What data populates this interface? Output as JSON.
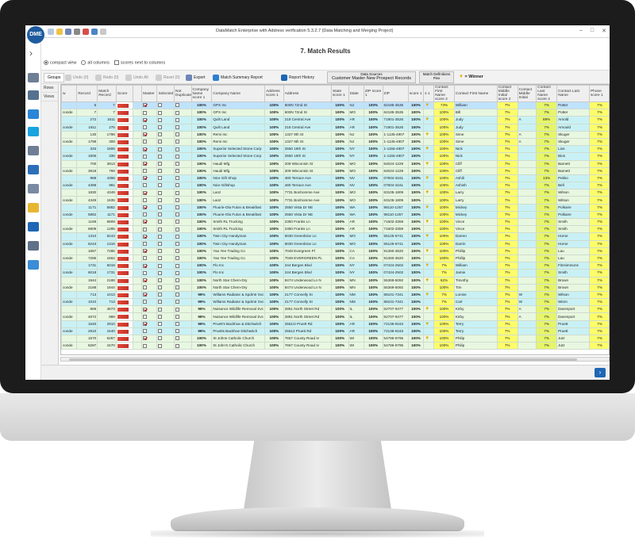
{
  "window": {
    "title": "DataMatch Enterprise with Address verification 5.3.2.7 (Data Matching and Merging Project)",
    "logo": "DME",
    "controls": [
      "–",
      "□",
      "✕"
    ]
  },
  "page_title": "7. Match Results",
  "options": {
    "compact_view": "compact view",
    "all_columns": "all columns",
    "scores_next": "scores next to columns"
  },
  "toolbar": {
    "groups_tab": "Groups",
    "undo": "Undo (0)",
    "redo": "Redo (0)",
    "undo_all": "Undo All",
    "reset": "Reset (0)",
    "export": "Export",
    "summary": "Match Summary Report",
    "history": "Report History",
    "data_sources_label": "Data Sources",
    "data_sources_value": "Customer Master   New Prospect Records",
    "match_def_label": "Match Definitions",
    "match_def_value": "Flex",
    "winner": "= Winner"
  },
  "views": [
    "Rows",
    "Views"
  ],
  "columns": [
    "w",
    "Record",
    "Match Record",
    "Score",
    "",
    "Master",
    "Selected",
    "Not Duplicate",
    "Company Name score 1",
    "Company Name",
    "Address score 1",
    "Address",
    "State score 1",
    "State",
    "ZIP score 1",
    "ZIP",
    "score 1",
    "s 1",
    "Contact First Name score 2",
    "Contact First Name",
    "Contact Middle Initial score 2",
    "Contact Middle Initial",
    "Contact Last Name score 2",
    "Contact Last Name",
    "Phone score 1"
  ],
  "rows": [
    {
      "g": "1",
      "cls": "sel",
      "w": "",
      "rec": "6",
      "mrec": "7",
      "master": true,
      "sel": false,
      "cs": "100%",
      "co": "GPX Inc",
      "as": "100%",
      "addr": "600N 72nd St",
      "ss": "100%",
      "st": "NJ",
      "zs": "100%",
      "zip": "62185-3535",
      "z1": "100%",
      "win": true,
      "fs": "73%",
      "fn": "William",
      "ms": "7%",
      "mi": "",
      "ls": "7%",
      "ln": "Potter",
      "ps": "7%"
    },
    {
      "g": "1",
      "cls": "",
      "w": "conde",
      "rec": "7",
      "mrec": "7",
      "master": false,
      "sel": false,
      "cs": "100%",
      "co": "GPX Inc",
      "as": "100%",
      "addr": "600N 72nd St",
      "ss": "100%",
      "st": "MO",
      "zs": "100%",
      "zip": "62185-3535",
      "z1": "100%",
      "win": false,
      "fs": "100%",
      "fn": "Bill",
      "ms": "7%",
      "mi": "",
      "ls": "7%",
      "ln": "Potter",
      "ps": "7%"
    },
    {
      "g": "2",
      "cls": "",
      "w": "",
      "rec": "272",
      "mrec": "1611",
      "master": true,
      "sel": false,
      "cs": "100%",
      "co": "Quilt Land",
      "as": "100%",
      "addr": "218 Central Ave",
      "ss": "100%",
      "st": "AR",
      "zs": "100%",
      "zip": "71901-3526",
      "z1": "100%",
      "win": true,
      "fs": "100%",
      "fn": "Judy",
      "ms": "7%",
      "mi": "A",
      "ls": "89%",
      "ln": "Arnold",
      "ps": "7%"
    },
    {
      "g": "2",
      "cls": "",
      "w": "conde",
      "rec": "1611",
      "mrec": "275",
      "master": false,
      "sel": false,
      "cs": "100%",
      "co": "Quilt Land",
      "as": "100%",
      "addr": "218 Central Ave",
      "ss": "100%",
      "st": "AR",
      "zs": "100%",
      "zip": "71901-3526",
      "z1": "100%",
      "win": false,
      "fs": "100%",
      "fn": "Judy",
      "ms": "7%",
      "mi": "",
      "ls": "7%",
      "ln": "Arnould",
      "ps": "7%"
    },
    {
      "g": "1",
      "cls": "",
      "w": "",
      "rec": "130",
      "mrec": "1798",
      "master": true,
      "sel": false,
      "cs": "100%",
      "co": "Remi Inc",
      "as": "100%",
      "addr": "1327 9th St",
      "ss": "100%",
      "st": "NJ",
      "zs": "100%",
      "zip": "1-1135-4907",
      "z1": "100%",
      "win": true,
      "fs": "100%",
      "fn": "Sime",
      "ms": "7%",
      "mi": "A",
      "ls": "7%",
      "ln": "Skuger",
      "ps": "7%"
    },
    {
      "g": "1",
      "cls": "",
      "w": "conde",
      "rec": "1798",
      "mrec": "309",
      "master": false,
      "sel": false,
      "cs": "100%",
      "co": "Remi Inc",
      "as": "100%",
      "addr": "1327 9th St",
      "ss": "100%",
      "st": "NJ",
      "zs": "100%",
      "zip": "1-1135-4907",
      "z1": "100%",
      "win": false,
      "fs": "100%",
      "fn": "Sime",
      "ms": "7%",
      "mi": "A",
      "ls": "7%",
      "ln": "Skuger",
      "ps": "7%"
    },
    {
      "g": "2",
      "cls": "",
      "w": "",
      "rec": "333",
      "mrec": "1806",
      "master": true,
      "sel": false,
      "cs": "100%",
      "co": "Superior Selected Stone Corp",
      "as": "100%",
      "addr": "2550 19th St",
      "ss": "100%",
      "st": "NY",
      "zs": "100%",
      "zip": "1-1155-4907",
      "z1": "100%",
      "win": true,
      "fs": "100%",
      "fn": "Nick",
      "ms": "7%",
      "mi": "",
      "ls": "7%",
      "ln": "Lios",
      "ps": "7%"
    },
    {
      "g": "2",
      "cls": "",
      "w": "conde",
      "rec": "1806",
      "mrec": "336",
      "master": false,
      "sel": false,
      "cs": "100%",
      "co": "Superior Selected Stone Corp",
      "as": "100%",
      "addr": "2550 19th St",
      "ss": "100%",
      "st": "NY",
      "zs": "100%",
      "zip": "1-1155-4907",
      "z1": "100%",
      "win": false,
      "fs": "100%",
      "fn": "Nick",
      "ms": "7%",
      "mi": "",
      "ls": "7%",
      "ln": "Bios",
      "ps": "7%"
    },
    {
      "g": "1",
      "cls": "",
      "w": "",
      "rec": "700",
      "mrec": "3913",
      "master": true,
      "sel": false,
      "cs": "100%",
      "co": "Haudi Mfg",
      "as": "100%",
      "addr": "209 Wisconsin St",
      "ss": "100%",
      "st": "MO",
      "zs": "100%",
      "zip": "64024-1229",
      "z1": "100%",
      "win": true,
      "fs": "100%",
      "fn": "Cliff",
      "ms": "7%",
      "mi": "",
      "ls": "7%",
      "ln": "Barnett",
      "ps": "7%"
    },
    {
      "g": "1",
      "cls": "",
      "w": "conde",
      "rec": "3818",
      "mrec": "769",
      "master": false,
      "sel": false,
      "cs": "100%",
      "co": "Haudi Mfg",
      "as": "100%",
      "addr": "209 Wisconsin St",
      "ss": "100%",
      "st": "MO",
      "zs": "100%",
      "zip": "64024-1229",
      "z1": "100%",
      "win": false,
      "fs": "100%",
      "fn": "Cliff",
      "ms": "7%",
      "mi": "",
      "ls": "7%",
      "ln": "Barnett",
      "ps": "7%"
    },
    {
      "g": "2",
      "cls": "",
      "w": "",
      "rec": "988",
      "mrec": "4396",
      "master": true,
      "sel": false,
      "cs": "100%",
      "co": "Nice Gift Shop",
      "as": "100%",
      "addr": "480 Terrace Ave",
      "ss": "100%",
      "st": "NV",
      "zs": "100%",
      "zip": "07604-3161",
      "z1": "100%",
      "win": true,
      "fs": "100%",
      "fn": "Ashili",
      "ms": "7%",
      "mi": "",
      "ls": "13%",
      "ln": "Pekko",
      "ps": "7%"
    },
    {
      "g": "2",
      "cls": "",
      "w": "conde",
      "rec": "4398",
      "mrec": "991",
      "master": false,
      "sel": false,
      "cs": "100%",
      "co": "Nice Giftshop",
      "as": "100%",
      "addr": "480 Terrace Ave",
      "ss": "100%",
      "st": "NV",
      "zs": "100%",
      "zip": "07604-3161",
      "z1": "100%",
      "win": false,
      "fs": "100%",
      "fn": "Ashish",
      "ms": "7%",
      "mi": "",
      "ls": "7%",
      "ln": "Bell",
      "ps": "7%"
    },
    {
      "g": "1",
      "cls": "",
      "w": "",
      "rec": "1830",
      "mrec": "4349",
      "master": true,
      "sel": false,
      "cs": "100%",
      "co": "Lanz",
      "as": "100%",
      "addr": "7731 Bonhomme Ave",
      "ss": "100%",
      "st": "MO",
      "zs": "100%",
      "zip": "63105-1809",
      "z1": "100%",
      "win": true,
      "fs": "100%",
      "fn": "Larry",
      "ms": "7%",
      "mi": "",
      "ls": "7%",
      "ln": "Wilson",
      "ps": "7%"
    },
    {
      "g": "1",
      "cls": "",
      "w": "conde",
      "rec": "4349",
      "mrec": "1835",
      "master": false,
      "sel": false,
      "cs": "100%",
      "co": "Lanz",
      "as": "100%",
      "addr": "7731 Bonhomme Ave",
      "ss": "100%",
      "st": "MO",
      "zs": "100%",
      "zip": "63105-1809",
      "z1": "100%",
      "win": false,
      "fs": "100%",
      "fn": "Larry",
      "ms": "7%",
      "mi": "",
      "ls": "7%",
      "ln": "Wilson",
      "ps": "7%"
    },
    {
      "g": "2",
      "cls": "",
      "w": "",
      "rec": "1171",
      "mrec": "5882",
      "master": true,
      "sel": false,
      "cs": "100%",
      "co": "Fluurie-Ola Futon & Breakfast",
      "as": "100%",
      "addr": "2550 Vista Dr NE",
      "ss": "100%",
      "st": "WA",
      "zs": "100%",
      "zip": "98110-1257",
      "z1": "100%",
      "win": true,
      "fs": "100%",
      "fn": "Mickey",
      "ms": "7%",
      "mi": "",
      "ls": "7%",
      "ln": "Polkaire",
      "ps": "7%"
    },
    {
      "g": "2",
      "cls": "",
      "w": "conde",
      "rec": "5882",
      "mrec": "1171",
      "master": false,
      "sel": false,
      "cs": "100%",
      "co": "Fluurie-Ola Futon & Breakfast",
      "as": "100%",
      "addr": "2550 Vista Dr NE",
      "ss": "100%",
      "st": "WA",
      "zs": "100%",
      "zip": "98110-1257",
      "z1": "100%",
      "win": false,
      "fs": "100%",
      "fn": "Mickey",
      "ms": "7%",
      "mi": "",
      "ls": "7%",
      "ln": "Polkaire",
      "ps": "7%"
    },
    {
      "g": "1",
      "cls": "",
      "w": "",
      "rec": "1169",
      "mrec": "6809",
      "master": true,
      "sel": false,
      "cs": "100%",
      "co": "Smith RL Trucking",
      "as": "100%",
      "addr": "2350 Franks Ln",
      "ss": "100%",
      "st": "AR",
      "zs": "100%",
      "zip": "71602-3359",
      "z1": "100%",
      "win": true,
      "fs": "100%",
      "fn": "Vince",
      "ms": "7%",
      "mi": "",
      "ls": "7%",
      "ln": "Smith",
      "ps": "7%"
    },
    {
      "g": "1",
      "cls": "",
      "w": "conde",
      "rec": "6809",
      "mrec": "1285",
      "master": false,
      "sel": false,
      "cs": "100%",
      "co": "Smith RL Trucking",
      "as": "100%",
      "addr": "2350 Franks Ln",
      "ss": "100%",
      "st": "AR",
      "zs": "100%",
      "zip": "71602-3359",
      "z1": "100%",
      "win": false,
      "fs": "100%",
      "fn": "Vince",
      "ms": "7%",
      "mi": "",
      "ls": "7%",
      "ln": "Smith",
      "ps": "7%"
    },
    {
      "g": "2",
      "cls": "",
      "w": "",
      "rec": "1310",
      "mrec": "6243",
      "master": true,
      "sel": false,
      "cs": "100%",
      "co": "Twin City Handyman",
      "as": "100%",
      "addr": "6030 Greenbriar Ln",
      "ss": "100%",
      "st": "MO",
      "zs": "100%",
      "zip": "55125-6741",
      "z1": "100%",
      "win": true,
      "fs": "100%",
      "fn": "Darren",
      "ms": "7%",
      "mi": "",
      "ls": "7%",
      "ln": "Horne",
      "ps": "7%"
    },
    {
      "g": "2",
      "cls": "",
      "w": "conde",
      "rec": "6243",
      "mrec": "1316",
      "master": false,
      "sel": false,
      "cs": "100%",
      "co": "Twin City Handyman",
      "as": "100%",
      "addr": "6030 Greenbriar Ln",
      "ss": "100%",
      "st": "MO",
      "zs": "100%",
      "zip": "55125-6741",
      "z1": "100%",
      "win": false,
      "fs": "100%",
      "fn": "Darrin",
      "ms": "7%",
      "mi": "",
      "ls": "7%",
      "ln": "Horne",
      "ps": "7%"
    },
    {
      "g": "1",
      "cls": "",
      "w": "",
      "rec": "1667",
      "mrec": "7285",
      "master": true,
      "sel": false,
      "cs": "100%",
      "co": "Yao Yee Trading Co",
      "as": "100%",
      "addr": "7049 Evergreen Pl",
      "ss": "100%",
      "st": "CA",
      "zs": "100%",
      "zip": "91360-3620",
      "z1": "100%",
      "win": true,
      "fs": "100%",
      "fn": "Phillip",
      "ms": "7%",
      "mi": "",
      "ls": "7%",
      "ln": "Lau",
      "ps": "7%"
    },
    {
      "g": "1",
      "cls": "",
      "w": "conde",
      "rec": "7285",
      "mrec": "1662",
      "master": false,
      "sel": false,
      "cs": "100%",
      "co": "Yao Yee Trading Co",
      "as": "100%",
      "addr": "7049 EVERGREEN PL",
      "ss": "100%",
      "st": "CA",
      "zs": "100%",
      "zip": "91360-3620",
      "z1": "100%",
      "win": false,
      "fs": "100%",
      "fn": "Phillip",
      "ms": "7%",
      "mi": "",
      "ls": "7%",
      "ln": "Lau",
      "ps": "7%"
    },
    {
      "g": "2",
      "cls": "",
      "w": "",
      "rec": "1731",
      "mrec": "6018",
      "master": true,
      "sel": false,
      "cs": "100%",
      "co": "Flo Inc",
      "as": "100%",
      "addr": "244 Bergen Blvd",
      "ss": "100%",
      "st": "NY",
      "zs": "100%",
      "zip": "07424-2502",
      "z1": "100%",
      "win": true,
      "fs": "7%",
      "fn": "William",
      "ms": "7%",
      "mi": "",
      "ls": "7%",
      "ln": "Fitzsimmons",
      "ps": "7%"
    },
    {
      "g": "2",
      "cls": "",
      "w": "conde",
      "rec": "6018",
      "mrec": "1731",
      "master": false,
      "sel": false,
      "cs": "100%",
      "co": "Flo Inc",
      "as": "100%",
      "addr": "244 Bergen Blvd",
      "ss": "100%",
      "st": "NY",
      "zs": "100%",
      "zip": "07424-2502",
      "z1": "100%",
      "win": false,
      "fs": "7%",
      "fn": "Jamie",
      "ms": "7%",
      "mi": "",
      "ls": "7%",
      "ln": "Smith",
      "ps": "7%"
    },
    {
      "g": "1",
      "cls": "",
      "w": "",
      "rec": "1944",
      "mrec": "2188",
      "master": true,
      "sel": false,
      "cs": "100%",
      "co": "North Star Chem-Dry",
      "as": "100%",
      "addr": "8474 Underwood Ln N",
      "ss": "100%",
      "st": "MN",
      "zs": "100%",
      "zip": "55369-5092",
      "z1": "100%",
      "win": true,
      "fs": "62%",
      "fn": "Timothy",
      "ms": "7%",
      "mi": "",
      "ls": "7%",
      "ln": "Brown",
      "ps": "7%"
    },
    {
      "g": "1",
      "cls": "",
      "w": "conde",
      "rec": "2188",
      "mrec": "1944",
      "master": false,
      "sel": false,
      "cs": "100%",
      "co": "North Star Chem-Dry",
      "as": "100%",
      "addr": "8474 Underwood Ln N",
      "ss": "100%",
      "st": "MN",
      "zs": "100%",
      "zip": "55369-5092",
      "z1": "100%",
      "win": false,
      "fs": "100%",
      "fn": "Tim",
      "ms": "7%",
      "mi": "",
      "ls": "7%",
      "ln": "Brown",
      "ps": "7%"
    },
    {
      "g": "2",
      "cls": "",
      "w": "",
      "rec": "713",
      "mrec": "1013",
      "master": true,
      "sel": false,
      "cs": "99%",
      "co": "Willams Radiator & Spdmtr Svc",
      "as": "100%",
      "addr": "2177 Connelly St",
      "ss": "100%",
      "st": "NM",
      "zs": "100%",
      "zip": "88101-7341",
      "z1": "100%",
      "win": true,
      "fs": "7%",
      "fn": "Lonnie",
      "ms": "7%",
      "mi": "W",
      "ls": "7%",
      "ln": "Wilson",
      "ps": "7%"
    },
    {
      "g": "2",
      "cls": "",
      "w": "conde",
      "rec": "1010",
      "mrec": "713",
      "master": false,
      "sel": false,
      "cs": "99%",
      "co": "Willams Radiator & Spdmtr Svc",
      "as": "100%",
      "addr": "2177 Connelly St",
      "ss": "100%",
      "st": "NM",
      "zs": "100%",
      "zip": "88101-7341",
      "z1": "100%",
      "win": false,
      "fs": "7%",
      "fn": "Carl",
      "ms": "7%",
      "mi": "W",
      "ls": "7%",
      "ln": "Wiom",
      "ps": "7%"
    },
    {
      "g": "1",
      "cls": "",
      "w": "",
      "rec": "869",
      "mrec": "4673",
      "master": true,
      "sel": false,
      "cs": "99%",
      "co": "Nuisance Wildlife Removal Svc",
      "as": "100%",
      "addr": "2851 North Street Rd",
      "ss": "100%",
      "st": "IL",
      "zs": "100%",
      "zip": "62707-9477",
      "z1": "100%",
      "win": true,
      "fs": "100%",
      "fn": "Kirby",
      "ms": "7%",
      "mi": "A",
      "ls": "7%",
      "ln": "Davenport",
      "ps": "7%"
    },
    {
      "g": "1",
      "cls": "",
      "w": "conde",
      "rec": "4672",
      "mrec": "869",
      "master": false,
      "sel": false,
      "cs": "99%",
      "co": "Nuisance Wildlife Removal Svc",
      "as": "100%",
      "addr": "2851 North Street Rd",
      "ss": "100%",
      "st": "IL",
      "zs": "100%",
      "zip": "62707-9477",
      "z1": "100%",
      "win": false,
      "fs": "100%",
      "fn": "Kirby",
      "ms": "7%",
      "mi": "A",
      "ls": "7%",
      "ln": "Davenport",
      "ps": "7%"
    },
    {
      "g": "2",
      "cls": "",
      "w": "",
      "rec": "1540",
      "mrec": "2910",
      "master": true,
      "sel": false,
      "cs": "99%",
      "co": "Pruett's Backhoe & Ditchwitch",
      "as": "100%",
      "addr": "2551/2 Pruett Rd",
      "ss": "100%",
      "st": "AR",
      "zs": "100%",
      "zip": "72136-9163",
      "z1": "100%",
      "win": true,
      "fs": "100%",
      "fn": "Terry",
      "ms": "7%",
      "mi": "",
      "ls": "7%",
      "ln": "Pruett",
      "ps": "7%"
    },
    {
      "g": "2",
      "cls": "",
      "w": "conde",
      "rec": "2910",
      "mrec": "1540",
      "master": false,
      "sel": false,
      "cs": "99%",
      "co": "Pruetts Backhoe Ditchwitch",
      "as": "100%",
      "addr": "25512 Pruett Rd",
      "ss": "100%",
      "st": "AR",
      "zs": "100%",
      "zip": "72136-9163",
      "z1": "100%",
      "win": false,
      "fs": "100%",
      "fn": "Terry",
      "ms": "7%",
      "mi": "",
      "ls": "7%",
      "ln": "Pruett",
      "ps": "7%"
    },
    {
      "g": "1",
      "cls": "",
      "w": "",
      "rec": "1570",
      "mrec": "6287",
      "master": true,
      "sel": false,
      "cs": "100%",
      "co": "St Johns Catholic Church",
      "as": "100%",
      "addr": "7657 County Road Iv",
      "ss": "100%",
      "st": "WI",
      "zs": "100%",
      "zip": "54786-9795",
      "z1": "100%",
      "win": true,
      "fs": "100%",
      "fn": "Philip",
      "ms": "7%",
      "mi": "",
      "ls": "7%",
      "ln": "Jutz",
      "ps": "7%"
    },
    {
      "g": "1",
      "cls": "",
      "w": "conde",
      "rec": "6287",
      "mrec": "1570",
      "master": false,
      "sel": false,
      "cs": "100%",
      "co": "St John's Catholic Church",
      "as": "100%",
      "addr": "7657 County Road Iv",
      "ss": "100%",
      "st": "WI",
      "zs": "100%",
      "zip": "54786-9795",
      "z1": "100%",
      "win": false,
      "fs": "100%",
      "fn": "Philip",
      "ms": "7%",
      "mi": "",
      "ls": "7%",
      "ln": "Jutz",
      "ps": "7%"
    }
  ],
  "colors": {
    "group_a": "#e8f7e0",
    "group_b": "#c9f1f5",
    "highlight": "#fdfd6a",
    "score_bar": "#e24a3b",
    "winner": "#e8a400"
  }
}
